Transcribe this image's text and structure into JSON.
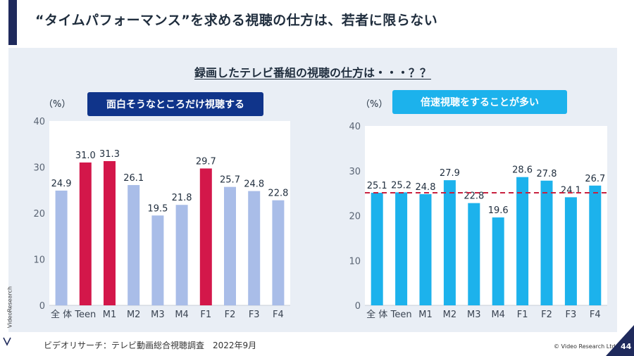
{
  "header": {
    "title": "“タイムパフォーマンス”を求める視聴の仕方は、若者に限らない"
  },
  "panel": {
    "subtitle": "録画したテレビ番組の視聴の仕方は・・・？？"
  },
  "chart_data": [
    {
      "type": "bar",
      "title": "面白そうなところだけ視聴する",
      "unit_label": "（%）",
      "categories": [
        "全 体",
        "Teen",
        "M1",
        "M2",
        "M3",
        "M4",
        "F1",
        "F2",
        "F3",
        "F4"
      ],
      "values": [
        24.9,
        31.0,
        31.3,
        26.1,
        19.5,
        21.8,
        29.7,
        25.7,
        24.8,
        22.8
      ],
      "value_labels": [
        "24.9",
        "31.0",
        "31.3",
        "26.1",
        "19.5",
        "21.8",
        "29.7",
        "25.7",
        "24.8",
        "22.8"
      ],
      "highlight": [
        false,
        true,
        true,
        false,
        false,
        false,
        true,
        false,
        false,
        false
      ],
      "ylim": [
        0,
        40
      ],
      "yticks": [
        0,
        10,
        20,
        30,
        40
      ],
      "grid": false,
      "colors": {
        "bar": "#a9bde8",
        "highlight": "#d3174a",
        "title_bg": "#10348a"
      }
    },
    {
      "type": "bar",
      "title": "倍速視聴をすることが多い",
      "unit_label": "（%）",
      "categories": [
        "全 体",
        "Teen",
        "M1",
        "M2",
        "M3",
        "M4",
        "F1",
        "F2",
        "F3",
        "F4"
      ],
      "values": [
        25.1,
        25.2,
        24.8,
        27.9,
        22.8,
        19.6,
        28.6,
        27.8,
        24.1,
        26.7
      ],
      "value_labels": [
        "25.1",
        "25.2",
        "24.8",
        "27.9",
        "22.8",
        "19.6",
        "28.6",
        "27.8",
        "24.1",
        "26.7"
      ],
      "reference_line": 25.1,
      "ylim": [
        0,
        40
      ],
      "yticks": [
        0,
        10,
        20,
        30,
        40
      ],
      "grid": false,
      "colors": {
        "bar": "#1cb2ec",
        "reference": "#c8213f",
        "title_bg": "#1cb2ec"
      }
    }
  ],
  "footer": {
    "source": "ビデオリサーチ：テレビ動画総合視聴調査　2022年9月",
    "copyright": "© Video Research Ltd.",
    "page_number": "44",
    "brand": "VideoResearch"
  }
}
